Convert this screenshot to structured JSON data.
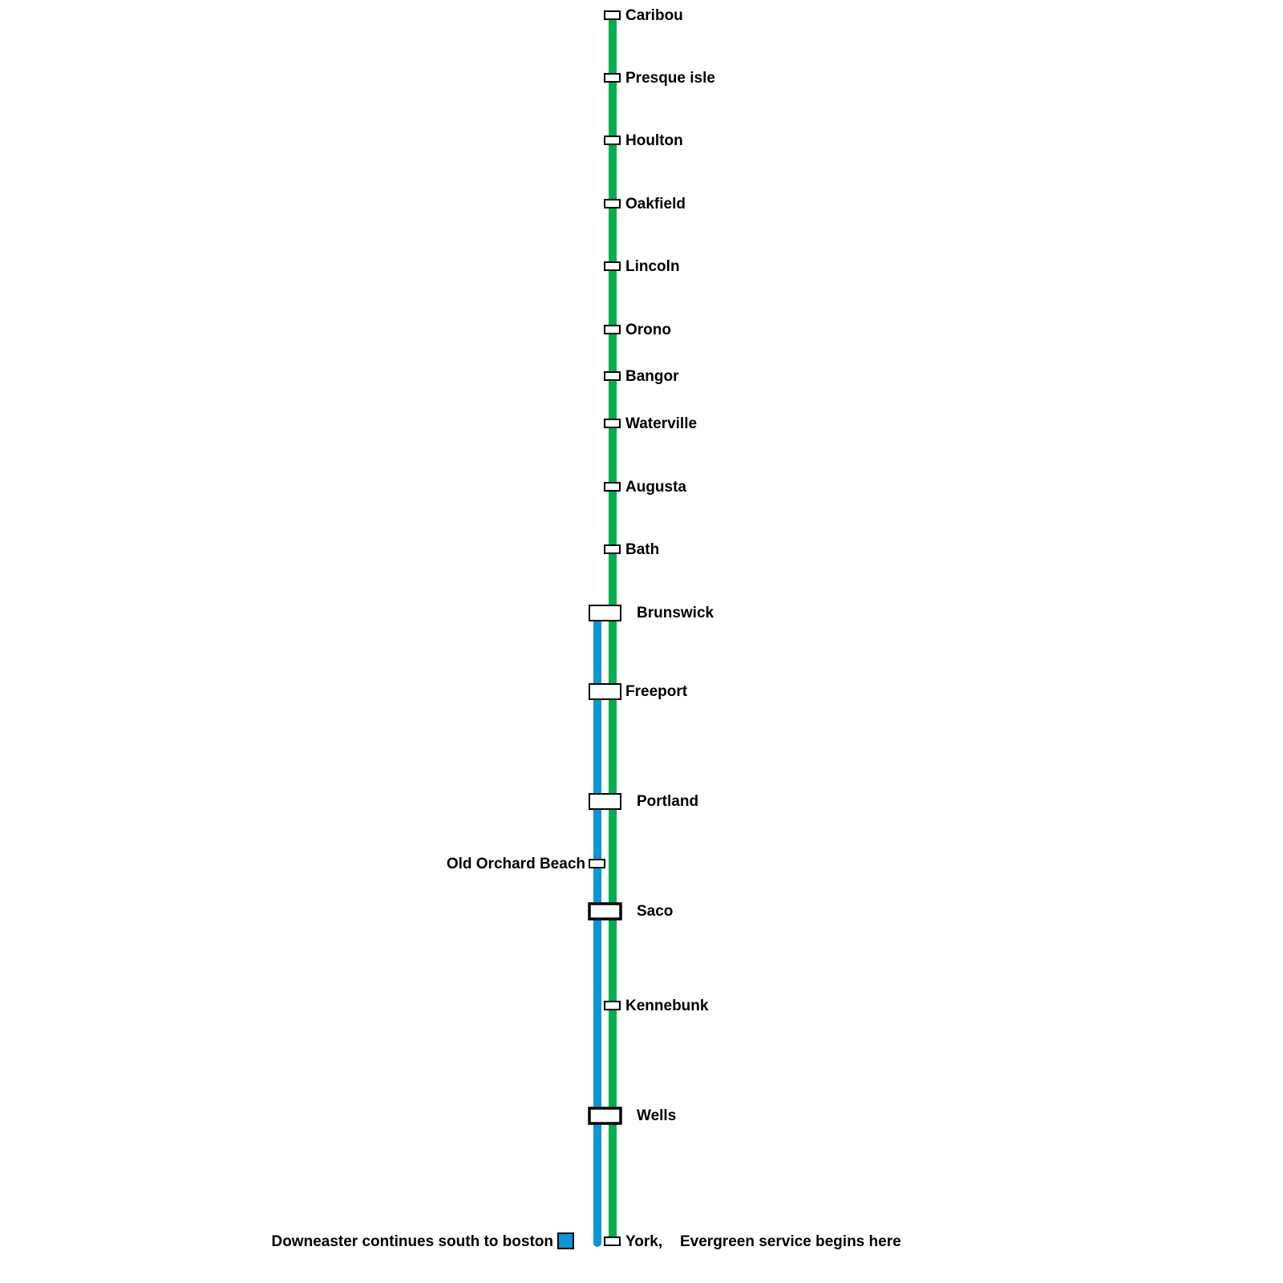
{
  "lines": {
    "evergreen": {
      "color": "#00b050"
    },
    "downeaster": {
      "color": "#0b96d6"
    }
  },
  "stations": [
    {
      "name": "Caribou",
      "type": "minor",
      "lines": [
        "evergreen"
      ]
    },
    {
      "name": "Presque isle",
      "type": "minor",
      "lines": [
        "evergreen"
      ]
    },
    {
      "name": "Houlton",
      "type": "minor",
      "lines": [
        "evergreen"
      ]
    },
    {
      "name": "Oakfield",
      "type": "minor",
      "lines": [
        "evergreen"
      ]
    },
    {
      "name": "Lincoln",
      "type": "minor",
      "lines": [
        "evergreen"
      ]
    },
    {
      "name": "Orono",
      "type": "minor",
      "lines": [
        "evergreen"
      ]
    },
    {
      "name": "Bangor",
      "type": "minor",
      "lines": [
        "evergreen"
      ]
    },
    {
      "name": "Waterville",
      "type": "minor",
      "lines": [
        "evergreen"
      ]
    },
    {
      "name": "Augusta",
      "type": "minor",
      "lines": [
        "evergreen"
      ]
    },
    {
      "name": "Bath",
      "type": "minor",
      "lines": [
        "evergreen"
      ]
    },
    {
      "name": "Brunswick",
      "type": "interchange",
      "lines": [
        "downeaster",
        "evergreen"
      ]
    },
    {
      "name": "Freeport",
      "type": "interchange",
      "lines": [
        "downeaster",
        "evergreen"
      ]
    },
    {
      "name": "Portland",
      "type": "interchange",
      "lines": [
        "downeaster",
        "evergreen"
      ]
    },
    {
      "name": "Old Orchard Beach",
      "type": "minor",
      "lines": [
        "downeaster"
      ]
    },
    {
      "name": "Saco",
      "type": "major",
      "lines": [
        "downeaster",
        "evergreen"
      ]
    },
    {
      "name": "Kennebunk",
      "type": "minor",
      "lines": [
        "evergreen"
      ]
    },
    {
      "name": "Wells",
      "type": "major",
      "lines": [
        "downeaster",
        "evergreen"
      ]
    },
    {
      "name": "York,",
      "type": "minor",
      "lines": [
        "evergreen"
      ]
    }
  ],
  "notes": {
    "downeaster": "Downeaster continues south to boston",
    "evergreen": "Evergreen service begins here"
  }
}
